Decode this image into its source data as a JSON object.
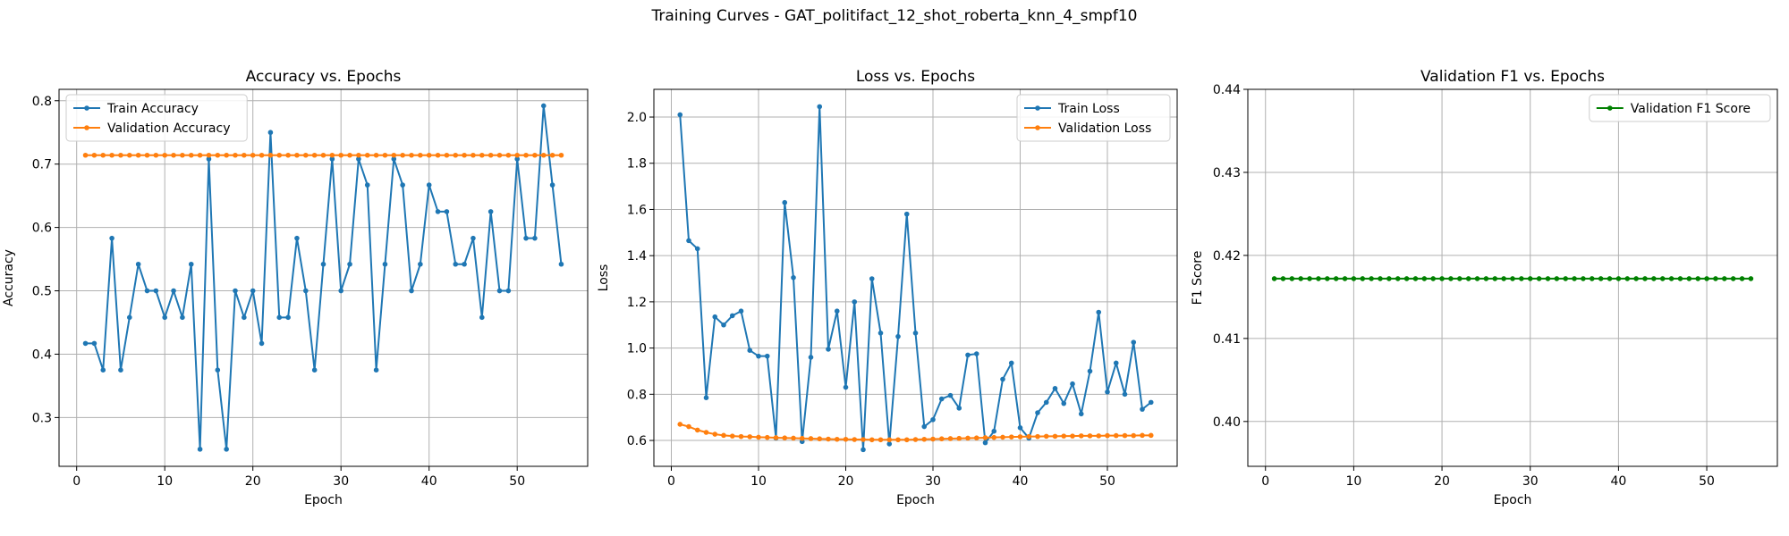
{
  "suptitle": "Training Curves - GAT_politifact_12_shot_roberta_knn_4_smpf10",
  "colors": {
    "blue": "#1f77b4",
    "orange": "#ff7f0e",
    "green": "#008000",
    "grid": "#b0b0b0"
  },
  "chart_data": [
    {
      "type": "line",
      "title": "Accuracy vs. Epochs",
      "xlabel": "Epoch",
      "ylabel": "Accuracy",
      "xlim": [
        -2,
        58
      ],
      "ylim": [
        0.223,
        0.818
      ],
      "xticks": [
        0,
        10,
        20,
        30,
        40,
        50
      ],
      "yticks": [
        0.3,
        0.4,
        0.5,
        0.6,
        0.7,
        0.8
      ],
      "ytick_labels": [
        "0.3",
        "0.4",
        "0.5",
        "0.6",
        "0.7",
        "0.8"
      ],
      "grid": true,
      "legend": "upper-left",
      "x": [
        1,
        2,
        3,
        4,
        5,
        6,
        7,
        8,
        9,
        10,
        11,
        12,
        13,
        14,
        15,
        16,
        17,
        18,
        19,
        20,
        21,
        22,
        23,
        24,
        25,
        26,
        27,
        28,
        29,
        30,
        31,
        32,
        33,
        34,
        35,
        36,
        37,
        38,
        39,
        40,
        41,
        42,
        43,
        44,
        45,
        46,
        47,
        48,
        49,
        50,
        51,
        52,
        53,
        54,
        55
      ],
      "series": [
        {
          "name": "Train Accuracy",
          "color": "blue",
          "values": [
            0.417,
            0.417,
            0.375,
            0.583,
            0.375,
            0.458,
            0.542,
            0.5,
            0.5,
            0.458,
            0.5,
            0.458,
            0.542,
            0.25,
            0.708,
            0.375,
            0.25,
            0.5,
            0.458,
            0.5,
            0.417,
            0.75,
            0.458,
            0.458,
            0.583,
            0.5,
            0.375,
            0.542,
            0.708,
            0.5,
            0.542,
            0.708,
            0.667,
            0.375,
            0.542,
            0.708,
            0.667,
            0.5,
            0.542,
            0.667,
            0.625,
            0.625,
            0.542,
            0.542,
            0.583,
            0.458,
            0.625,
            0.5,
            0.5,
            0.708,
            0.583,
            0.583,
            0.792,
            0.667,
            0.542
          ]
        },
        {
          "name": "Validation Accuracy",
          "color": "orange",
          "values": [
            0.714,
            0.714,
            0.714,
            0.714,
            0.714,
            0.714,
            0.714,
            0.714,
            0.714,
            0.714,
            0.714,
            0.714,
            0.714,
            0.714,
            0.714,
            0.714,
            0.714,
            0.714,
            0.714,
            0.714,
            0.714,
            0.714,
            0.714,
            0.714,
            0.714,
            0.714,
            0.714,
            0.714,
            0.714,
            0.714,
            0.714,
            0.714,
            0.714,
            0.714,
            0.714,
            0.714,
            0.714,
            0.714,
            0.714,
            0.714,
            0.714,
            0.714,
            0.714,
            0.714,
            0.714,
            0.714,
            0.714,
            0.714,
            0.714,
            0.714,
            0.714,
            0.714,
            0.714,
            0.714,
            0.714
          ]
        }
      ]
    },
    {
      "type": "line",
      "title": "Loss vs. Epochs",
      "xlabel": "Epoch",
      "ylabel": "Loss",
      "xlim": [
        -2,
        58
      ],
      "ylim": [
        0.488,
        2.12
      ],
      "xticks": [
        0,
        10,
        20,
        30,
        40,
        50
      ],
      "yticks": [
        0.6,
        0.8,
        1.0,
        1.2,
        1.4,
        1.6,
        1.8,
        2.0
      ],
      "ytick_labels": [
        "0.6",
        "0.8",
        "1.0",
        "1.2",
        "1.4",
        "1.6",
        "1.8",
        "2.0"
      ],
      "grid": true,
      "legend": "upper-right",
      "x": [
        1,
        2,
        3,
        4,
        5,
        6,
        7,
        8,
        9,
        10,
        11,
        12,
        13,
        14,
        15,
        16,
        17,
        18,
        19,
        20,
        21,
        22,
        23,
        24,
        25,
        26,
        27,
        28,
        29,
        30,
        31,
        32,
        33,
        34,
        35,
        36,
        37,
        38,
        39,
        40,
        41,
        42,
        43,
        44,
        45,
        46,
        47,
        48,
        49,
        50,
        51,
        52,
        53,
        54,
        55
      ],
      "series": [
        {
          "name": "Train Loss",
          "color": "blue",
          "values": [
            2.01,
            1.465,
            1.43,
            0.785,
            1.135,
            1.1,
            1.14,
            1.16,
            0.99,
            0.965,
            0.965,
            0.61,
            1.63,
            1.305,
            0.595,
            0.96,
            2.045,
            0.995,
            1.16,
            0.83,
            1.2,
            0.56,
            1.3,
            1.065,
            0.585,
            1.05,
            1.58,
            1.065,
            0.66,
            0.69,
            0.78,
            0.795,
            0.74,
            0.97,
            0.975,
            0.59,
            0.64,
            0.865,
            0.935,
            0.655,
            0.61,
            0.72,
            0.765,
            0.825,
            0.76,
            0.845,
            0.715,
            0.9,
            1.155,
            0.81,
            0.935,
            0.8,
            1.025,
            0.735,
            0.765
          ]
        },
        {
          "name": "Validation Loss",
          "color": "orange",
          "values": [
            0.67,
            0.66,
            0.645,
            0.635,
            0.627,
            0.622,
            0.619,
            0.617,
            0.616,
            0.614,
            0.613,
            0.612,
            0.611,
            0.61,
            0.609,
            0.608,
            0.607,
            0.606,
            0.605,
            0.605,
            0.604,
            0.604,
            0.603,
            0.603,
            0.603,
            0.603,
            0.603,
            0.604,
            0.605,
            0.606,
            0.607,
            0.608,
            0.609,
            0.61,
            0.611,
            0.612,
            0.613,
            0.614,
            0.615,
            0.616,
            0.617,
            0.617,
            0.618,
            0.618,
            0.619,
            0.619,
            0.62,
            0.62,
            0.62,
            0.621,
            0.621,
            0.621,
            0.621,
            0.622,
            0.622
          ]
        }
      ]
    },
    {
      "type": "line",
      "title": "Validation F1 vs. Epochs",
      "xlabel": "Epoch",
      "ylabel": "F1 Score",
      "xlim": [
        -2,
        58
      ],
      "ylim": [
        0.3946,
        0.44
      ],
      "xticks": [
        0,
        10,
        20,
        30,
        40,
        50
      ],
      "yticks": [
        0.4,
        0.41,
        0.42,
        0.43,
        0.44
      ],
      "ytick_labels": [
        "0.40",
        "0.41",
        "0.42",
        "0.43",
        "0.44"
      ],
      "grid": true,
      "legend": "upper-right",
      "x": [
        1,
        2,
        3,
        4,
        5,
        6,
        7,
        8,
        9,
        10,
        11,
        12,
        13,
        14,
        15,
        16,
        17,
        18,
        19,
        20,
        21,
        22,
        23,
        24,
        25,
        26,
        27,
        28,
        29,
        30,
        31,
        32,
        33,
        34,
        35,
        36,
        37,
        38,
        39,
        40,
        41,
        42,
        43,
        44,
        45,
        46,
        47,
        48,
        49,
        50,
        51,
        52,
        53,
        54,
        55
      ],
      "series": [
        {
          "name": "Validation F1 Score",
          "color": "green",
          "values": [
            0.4172,
            0.4172,
            0.4172,
            0.4172,
            0.4172,
            0.4172,
            0.4172,
            0.4172,
            0.4172,
            0.4172,
            0.4172,
            0.4172,
            0.4172,
            0.4172,
            0.4172,
            0.4172,
            0.4172,
            0.4172,
            0.4172,
            0.4172,
            0.4172,
            0.4172,
            0.4172,
            0.4172,
            0.4172,
            0.4172,
            0.4172,
            0.4172,
            0.4172,
            0.4172,
            0.4172,
            0.4172,
            0.4172,
            0.4172,
            0.4172,
            0.4172,
            0.4172,
            0.4172,
            0.4172,
            0.4172,
            0.4172,
            0.4172,
            0.4172,
            0.4172,
            0.4172,
            0.4172,
            0.4172,
            0.4172,
            0.4172,
            0.4172,
            0.4172,
            0.4172,
            0.4172,
            0.4172,
            0.4172
          ]
        }
      ]
    }
  ]
}
